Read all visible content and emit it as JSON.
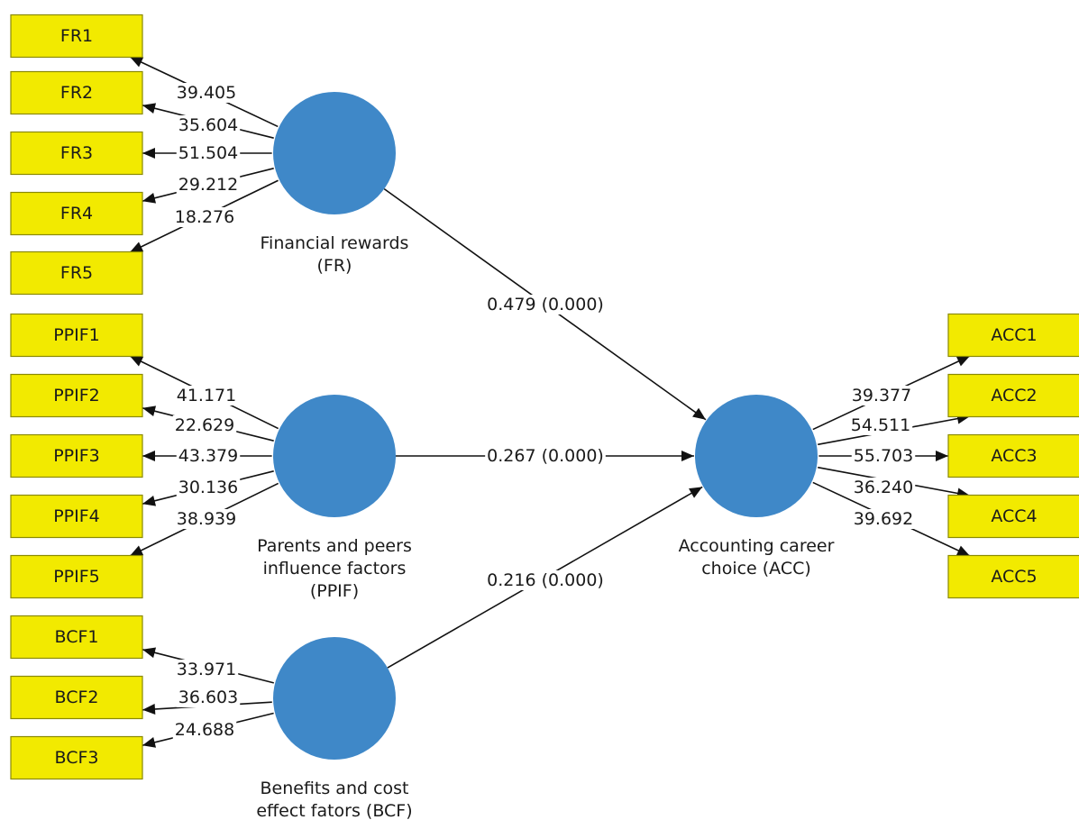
{
  "latent_variables": {
    "FR": {
      "label_lines": [
        "Financial rewards",
        "(FR)"
      ],
      "color": "#3f88c8"
    },
    "PPIF": {
      "label_lines": [
        "Parents and peers",
        "influence factors",
        "(PPIF)"
      ],
      "color": "#3f88c8"
    },
    "BCF": {
      "label_lines": [
        "Benefits and cost",
        "effect fators (BCF)"
      ],
      "color": "#3f88c8"
    },
    "ACC": {
      "label_lines": [
        "Accounting career",
        "choice (ACC)"
      ],
      "color": "#3f88c8"
    }
  },
  "indicators": {
    "FR": [
      {
        "name": "FR1",
        "loading": "39.405"
      },
      {
        "name": "FR2",
        "loading": "35.604"
      },
      {
        "name": "FR3",
        "loading": "51.504"
      },
      {
        "name": "FR4",
        "loading": "29.212"
      },
      {
        "name": "FR5",
        "loading": "18.276"
      }
    ],
    "PPIF": [
      {
        "name": "PPIF1",
        "loading": "41.171"
      },
      {
        "name": "PPIF2",
        "loading": "22.629"
      },
      {
        "name": "PPIF3",
        "loading": "43.379"
      },
      {
        "name": "PPIF4",
        "loading": "30.136"
      },
      {
        "name": "PPIF5",
        "loading": "38.939"
      }
    ],
    "BCF": [
      {
        "name": "BCF1",
        "loading": "33.971"
      },
      {
        "name": "BCF2",
        "loading": "36.603"
      },
      {
        "name": "BCF3",
        "loading": "24.688"
      }
    ],
    "ACC": [
      {
        "name": "ACC1",
        "loading": "39.377"
      },
      {
        "name": "ACC2",
        "loading": "54.511"
      },
      {
        "name": "ACC3",
        "loading": "55.703"
      },
      {
        "name": "ACC4",
        "loading": "36.240"
      },
      {
        "name": "ACC5",
        "loading": "39.692"
      }
    ]
  },
  "paths": [
    {
      "from": "FR",
      "to": "ACC",
      "label": "0.479 (0.000)"
    },
    {
      "from": "PPIF",
      "to": "ACC",
      "label": "0.267 (0.000)"
    },
    {
      "from": "BCF",
      "to": "ACC",
      "label": "0.216 (0.000)"
    }
  ],
  "colors": {
    "indicator_fill": "#f2ea00",
    "latent_fill": "#3f88c8"
  }
}
